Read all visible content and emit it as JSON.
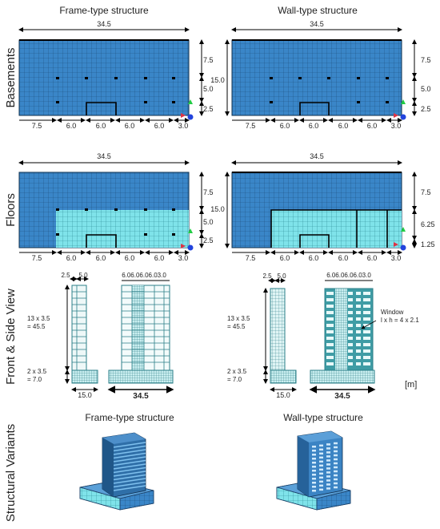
{
  "headings": {
    "frame": "Frame-type structure",
    "wall": "Wall-type structure"
  },
  "rows": {
    "basements": "Basements",
    "floors": "Floors",
    "front_side": "Front & Side View",
    "variants": "Structural Variants"
  },
  "dims": {
    "total": "34.5",
    "depth": "15.0",
    "spans": [
      "7.5",
      "6.0",
      "6.0",
      "6.0",
      "6.0",
      "3.0"
    ],
    "right_basement": [
      "7.5",
      "5.0",
      "2.5"
    ],
    "right_floor_frame": [
      "7.5",
      "5.0",
      "2.5"
    ],
    "right_floor_wall": [
      "7.5",
      "6.25",
      "1.25"
    ],
    "elev_top": [
      "2.5",
      "5.0"
    ],
    "elev_bays": "6.06.06.06.03.0",
    "elev_storeys": "13 x 3.5",
    "elev_storeys_total": "= 45.5",
    "elev_base": "2 x 3.5",
    "elev_base_total": "= 7.0",
    "elev_width_side": "15.0",
    "elev_width_front": "34.5",
    "window_label": "Window",
    "window_dims": "l x h = 4 x 2.1",
    "unit": "[m]"
  },
  "colors": {
    "grid_dark": "#3a86c8",
    "grid_light": "#7fe3ea",
    "frame_mesh": "#2f6fa8",
    "wall_mesh": "#5aa7b0",
    "axis_blue": "#2244dd",
    "axis_green": "#22cc44",
    "axis_red": "#dd3344"
  }
}
